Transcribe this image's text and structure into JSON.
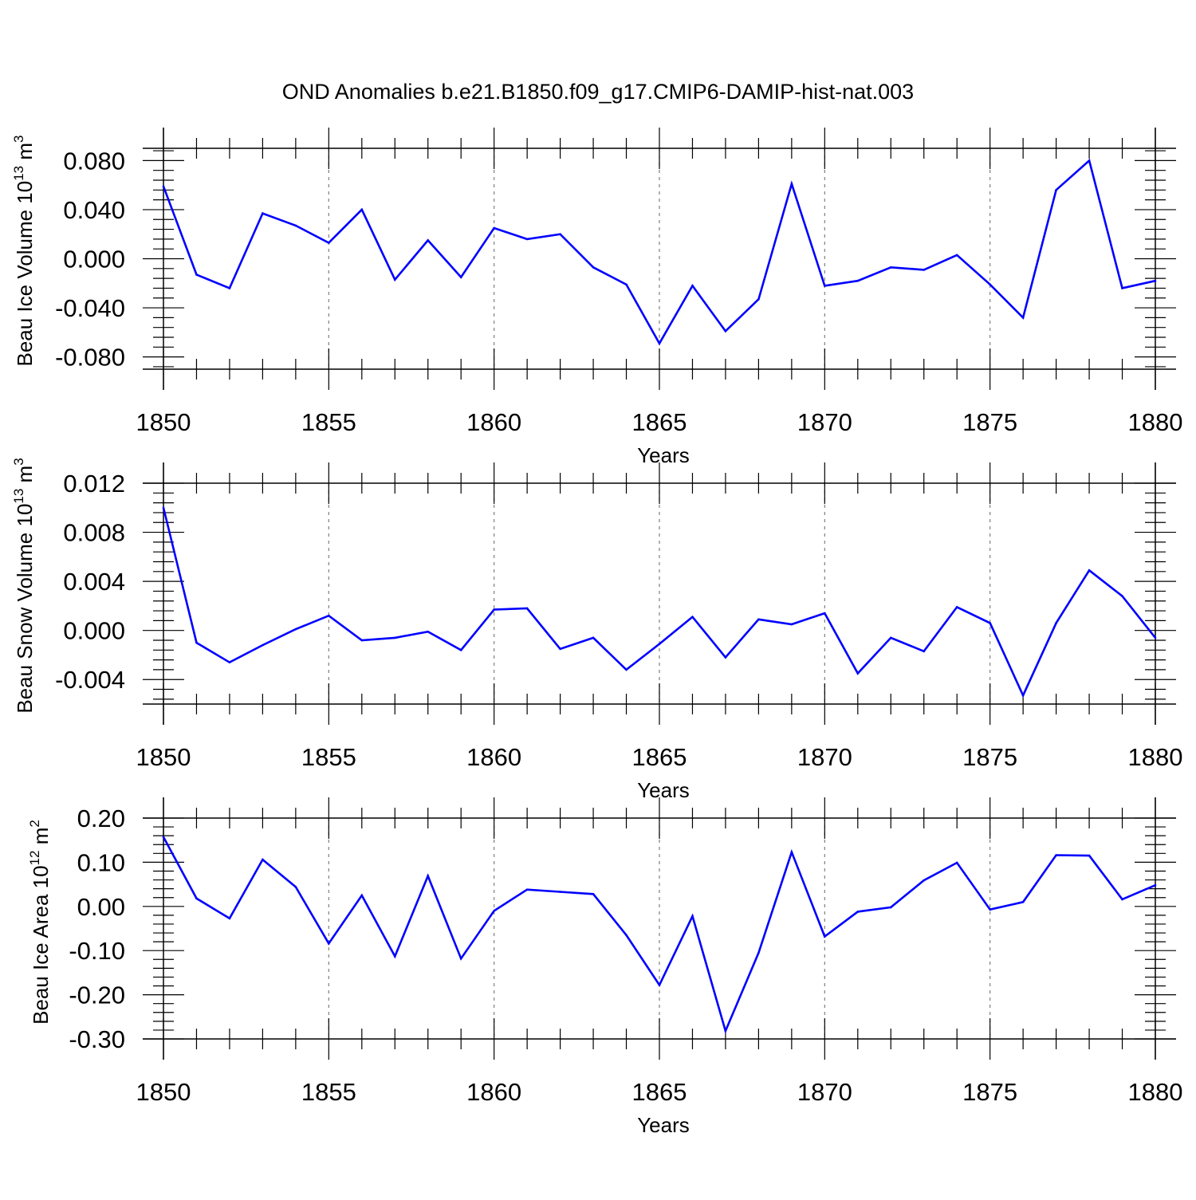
{
  "title": "OND Anomalies b.e21.B1850.f09_g17.CMIP6-DAMIP-hist-nat.003",
  "colors": {
    "line": "#0000ff",
    "axis": "#000000",
    "grid": "#808080"
  },
  "chart_data": [
    {
      "type": "line",
      "ylabel": {
        "text": "Beau Ice Volume 10",
        "sup_exp": "13",
        "unit": " m",
        "sup_unit": "3"
      },
      "xlabel": "Years",
      "xlim": [
        1850,
        1880
      ],
      "ylim": [
        -0.09,
        0.09
      ],
      "yticks": [
        -0.08,
        -0.04,
        0.0,
        0.04,
        0.08
      ],
      "ytick_labels": [
        "-0.080",
        "-0.040",
        "0.000",
        "0.040",
        "0.080"
      ],
      "xticks": [
        1850,
        1855,
        1860,
        1865,
        1870,
        1875,
        1880
      ],
      "xtick_labels": [
        "1850",
        "1855",
        "1860",
        "1865",
        "1870",
        "1875",
        "1880"
      ],
      "grid": "vertical dashed at major x ticks",
      "x": [
        1850,
        1851,
        1852,
        1853,
        1854,
        1855,
        1856,
        1857,
        1858,
        1859,
        1860,
        1861,
        1862,
        1863,
        1864,
        1865,
        1866,
        1867,
        1868,
        1869,
        1870,
        1871,
        1872,
        1873,
        1874,
        1875,
        1876,
        1877,
        1878,
        1879,
        1880
      ],
      "values": [
        0.059,
        -0.013,
        -0.024,
        0.037,
        0.027,
        0.013,
        0.04,
        -0.017,
        0.015,
        -0.015,
        0.025,
        0.016,
        0.02,
        -0.007,
        -0.021,
        -0.069,
        -0.022,
        -0.059,
        -0.033,
        0.061,
        -0.022,
        -0.018,
        -0.007,
        -0.009,
        0.003,
        -0.021,
        -0.048,
        0.056,
        0.08,
        -0.024,
        -0.018
      ]
    },
    {
      "type": "line",
      "ylabel": {
        "text": "Beau Snow Volume 10",
        "sup_exp": "13",
        "unit": " m",
        "sup_unit": "3"
      },
      "xlabel": "Years",
      "xlim": [
        1850,
        1880
      ],
      "ylim": [
        -0.006,
        0.012
      ],
      "yticks": [
        -0.004,
        0.0,
        0.004,
        0.008,
        0.012
      ],
      "ytick_labels": [
        "-0.004",
        "0.000",
        "0.004",
        "0.008",
        "0.012"
      ],
      "xticks": [
        1850,
        1855,
        1860,
        1865,
        1870,
        1875,
        1880
      ],
      "xtick_labels": [
        "1850",
        "1855",
        "1860",
        "1865",
        "1870",
        "1875",
        "1880"
      ],
      "grid": "vertical dashed at major x ticks",
      "x": [
        1850,
        1851,
        1852,
        1853,
        1854,
        1855,
        1856,
        1857,
        1858,
        1859,
        1860,
        1861,
        1862,
        1863,
        1864,
        1865,
        1866,
        1867,
        1868,
        1869,
        1870,
        1871,
        1872,
        1873,
        1874,
        1875,
        1876,
        1877,
        1878,
        1879,
        1880
      ],
      "values": [
        0.01,
        -0.001,
        -0.0026,
        -0.0012,
        0.0001,
        0.0012,
        -0.0008,
        -0.0006,
        -0.0001,
        -0.0016,
        0.0017,
        0.0018,
        -0.0015,
        -0.0006,
        -0.0032,
        -0.0011,
        0.0011,
        -0.0022,
        0.0009,
        0.0005,
        0.0014,
        -0.0035,
        -0.0006,
        -0.0017,
        0.0019,
        0.0006,
        -0.0053,
        0.0006,
        0.0049,
        0.0028,
        -0.0006
      ]
    },
    {
      "type": "line",
      "ylabel": {
        "text": "Beau Ice Area 10",
        "sup_exp": "12",
        "unit": " m",
        "sup_unit": "2"
      },
      "xlabel": "Years",
      "xlim": [
        1850,
        1880
      ],
      "ylim": [
        -0.3,
        0.2
      ],
      "yticks": [
        -0.3,
        -0.2,
        -0.1,
        0.0,
        0.1,
        0.2
      ],
      "ytick_labels": [
        "-0.30",
        "-0.20",
        "-0.10",
        "0.00",
        "0.10",
        "0.20"
      ],
      "xticks": [
        1850,
        1855,
        1860,
        1865,
        1870,
        1875,
        1880
      ],
      "xtick_labels": [
        "1850",
        "1855",
        "1860",
        "1865",
        "1870",
        "1875",
        "1880"
      ],
      "grid": "vertical dashed at major x ticks",
      "x": [
        1850,
        1851,
        1852,
        1853,
        1854,
        1855,
        1856,
        1857,
        1858,
        1859,
        1860,
        1861,
        1862,
        1863,
        1864,
        1865,
        1866,
        1867,
        1868,
        1869,
        1870,
        1871,
        1872,
        1873,
        1874,
        1875,
        1876,
        1877,
        1878,
        1879,
        1880
      ],
      "values": [
        0.157,
        0.018,
        -0.027,
        0.106,
        0.044,
        -0.084,
        0.025,
        -0.113,
        0.069,
        -0.118,
        -0.01,
        0.038,
        0.033,
        0.028,
        -0.065,
        -0.178,
        -0.022,
        -0.282,
        -0.105,
        0.123,
        -0.068,
        -0.012,
        -0.002,
        0.059,
        0.099,
        -0.007,
        0.01,
        0.116,
        0.115,
        0.016,
        0.048
      ]
    }
  ]
}
